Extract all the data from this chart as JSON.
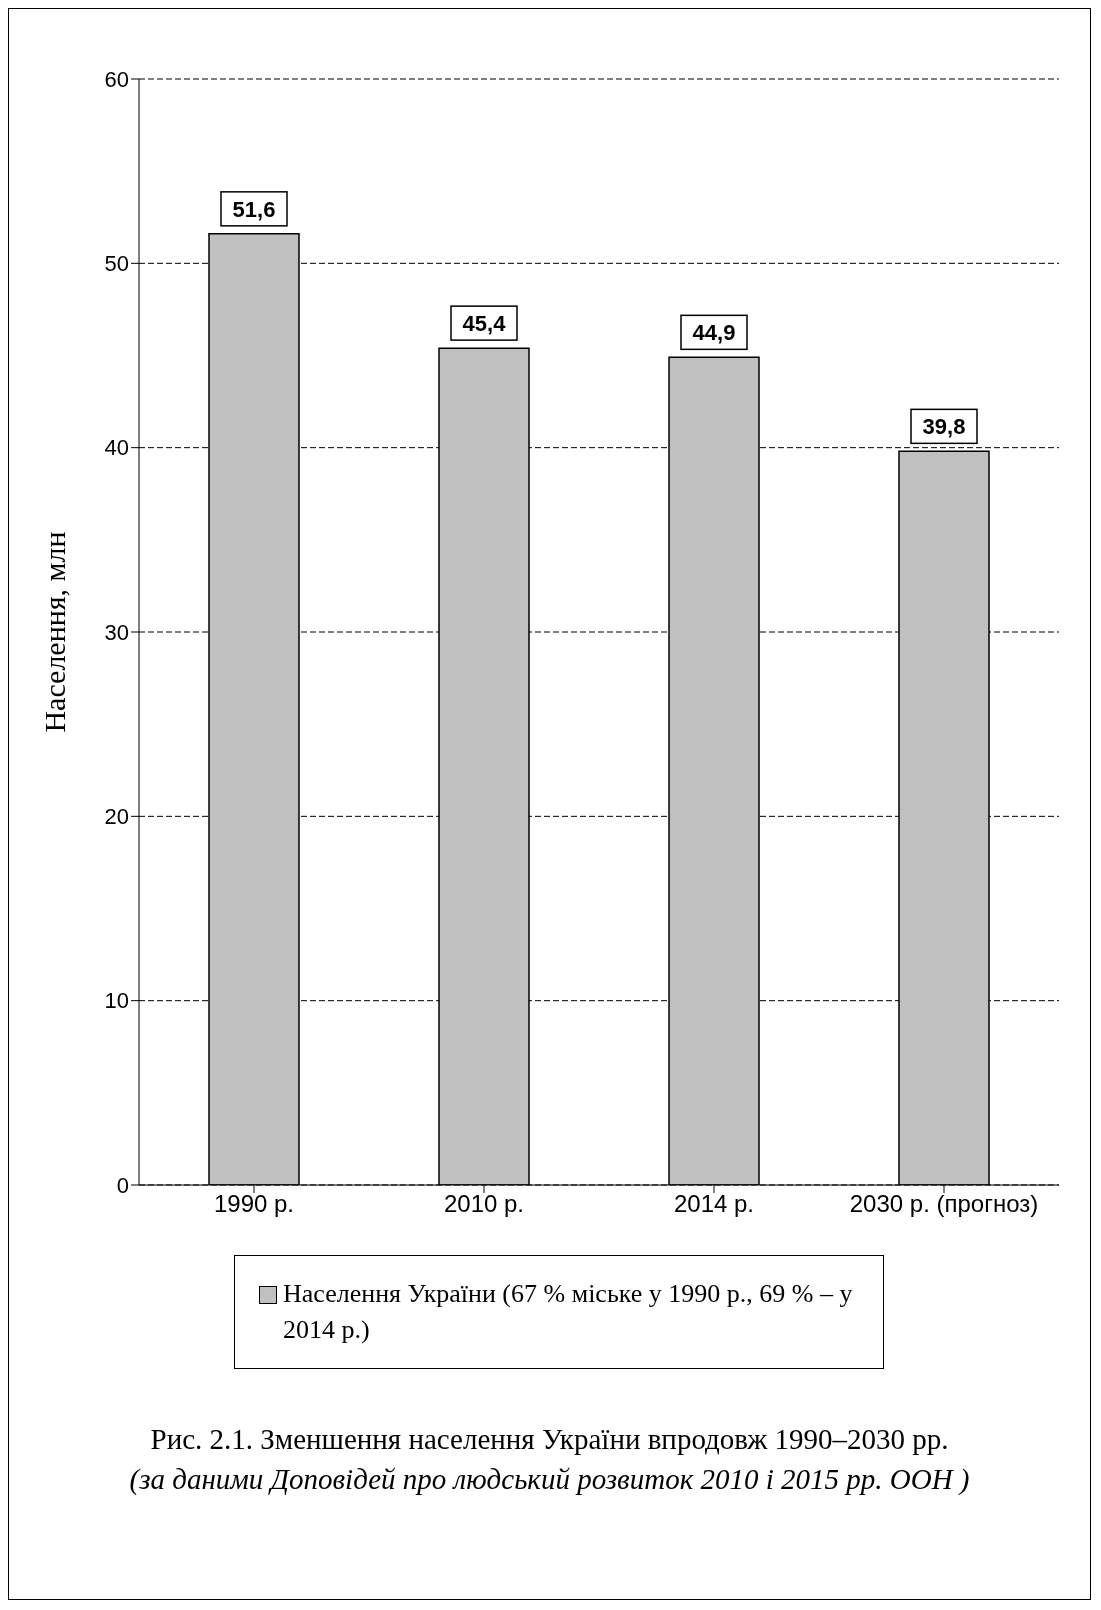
{
  "chart_data": {
    "type": "bar",
    "ylabel": "Населення, млн",
    "categories": [
      "1990 р.",
      "2010 р.",
      "2014 р.",
      "2030 р. (прогноз)"
    ],
    "series": [
      {
        "name": "Населення України (67 % міське у 1990 р., 69 % – у 2014 р.)",
        "color": "#c0c0c0",
        "values": [
          51.6,
          45.4,
          44.9,
          39.8
        ],
        "value_labels": [
          "51,6",
          "45,4",
          "44,9",
          "39,8"
        ]
      }
    ],
    "ylim": [
      0,
      60
    ],
    "yticks": [
      0,
      10,
      20,
      30,
      40,
      50,
      60
    ],
    "grid": "y",
    "legend": "bottom",
    "annotations": [
      "Рис. 2.1. Зменшення населення України впродовж 1990–2030 рр.",
      "(за даними Доповідей про людський розвиток 2010 і 2015 рр. ООН )"
    ]
  }
}
